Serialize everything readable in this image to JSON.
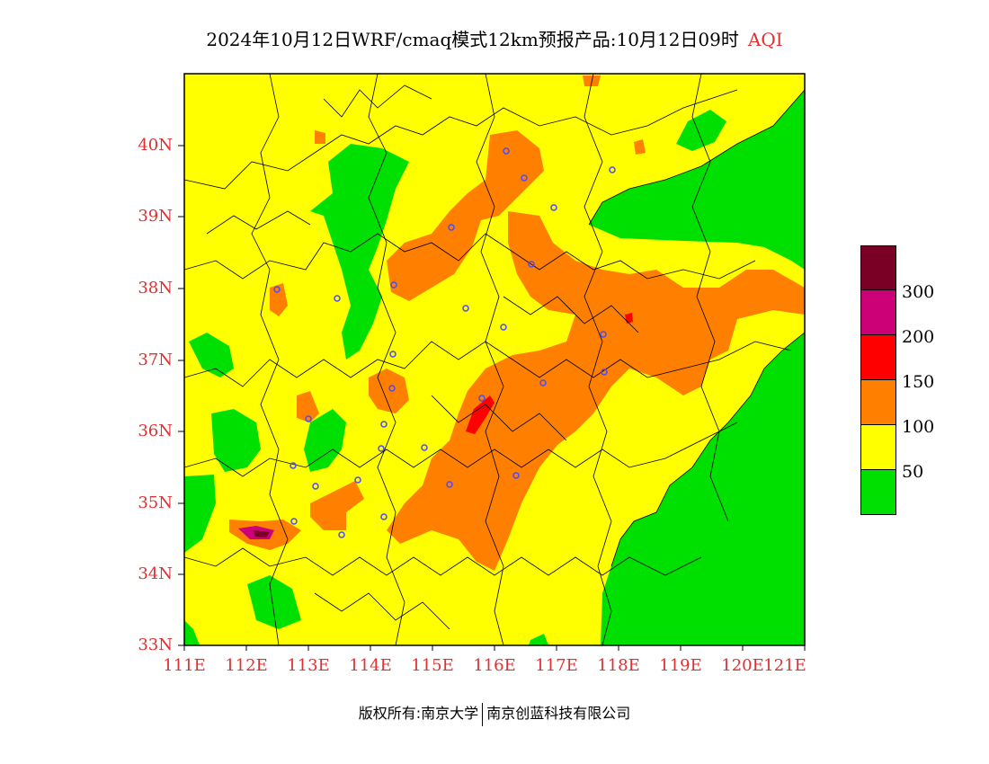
{
  "title": {
    "main": "2024年10月12日WRF/cmaq模式12km预报产品:10月12日09时",
    "variable": "AQI"
  },
  "axes": {
    "lat_labels": [
      "40N",
      "39N",
      "38N",
      "37N",
      "36N",
      "35N",
      "34N",
      "33N"
    ],
    "lon_labels": [
      "111E",
      "112E",
      "113E",
      "114E",
      "115E",
      "116E",
      "117E",
      "118E",
      "119E",
      "120E",
      "121E"
    ]
  },
  "legend": {
    "labels": [
      "300",
      "200",
      "150",
      "100",
      "50"
    ],
    "colors": [
      "#7a0026",
      "#cc0077",
      "#ff0000",
      "#ff7f00",
      "#ffff00",
      "#00e000"
    ]
  },
  "footer": {
    "left": "版权所有:南京大学",
    "right": "南京创蓝科技有限公司"
  }
}
